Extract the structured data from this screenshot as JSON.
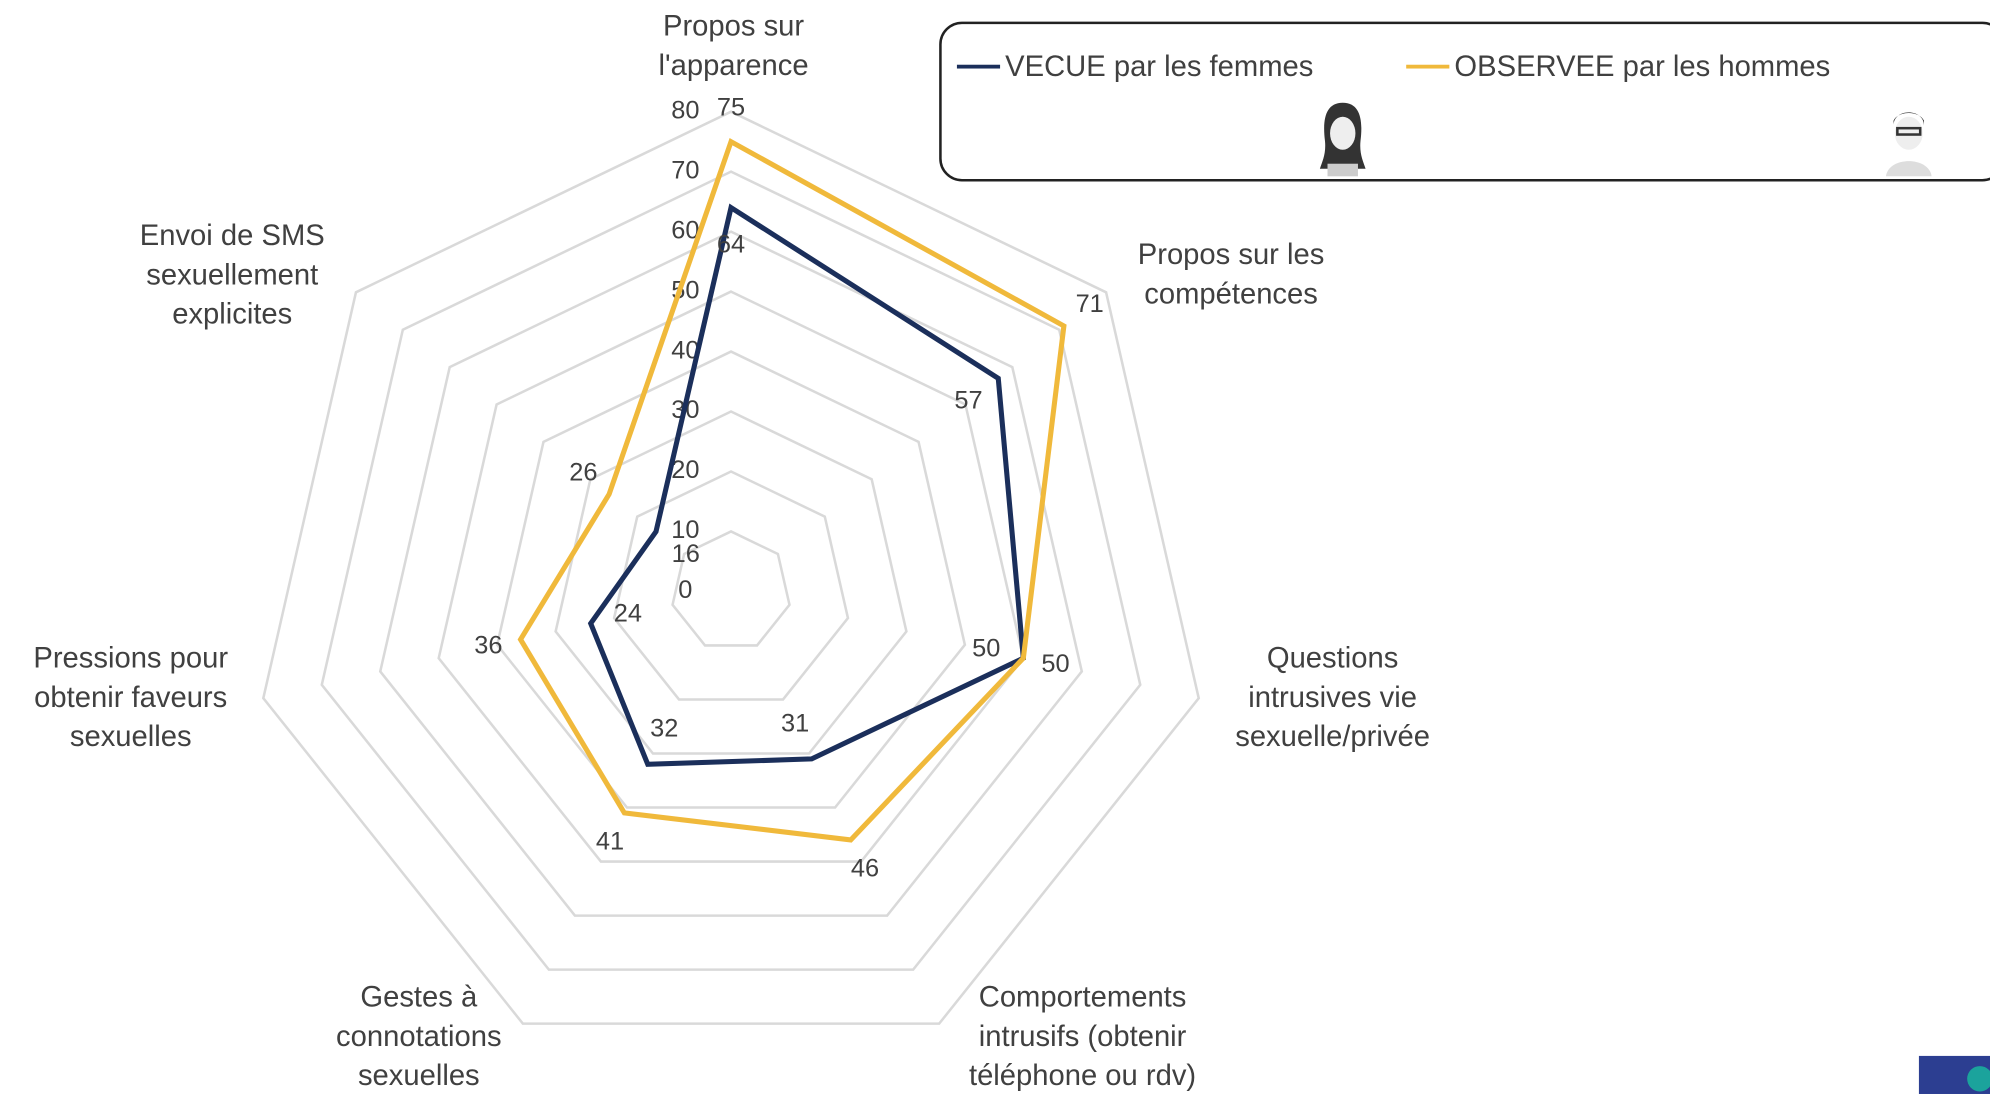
{
  "chart_data": {
    "type": "radar",
    "categories": [
      "Propos sur l'apparence",
      "Propos sur les compétences",
      "Questions intrusives vie sexuelle/privée",
      "Comportements intrusifs (obtenir téléphone ou rdv)",
      "Gestes à connotations sexuelles",
      "Pressions pour obtenir faveurs sexuelles",
      "Envoi de SMS sexuellement explicites"
    ],
    "series": [
      {
        "name": "VECUE par les femmes",
        "color": "#1b2f5b",
        "values": [
          64,
          57,
          50,
          31,
          32,
          24,
          16
        ]
      },
      {
        "name": "OBSERVEE par les hommes",
        "color": "#f0b93b",
        "values": [
          75,
          71,
          50,
          46,
          41,
          36,
          26
        ]
      }
    ],
    "rlim": [
      0,
      80
    ],
    "rticks": [
      0,
      10,
      20,
      30,
      40,
      50,
      60,
      70,
      80
    ],
    "grid": true
  }
}
